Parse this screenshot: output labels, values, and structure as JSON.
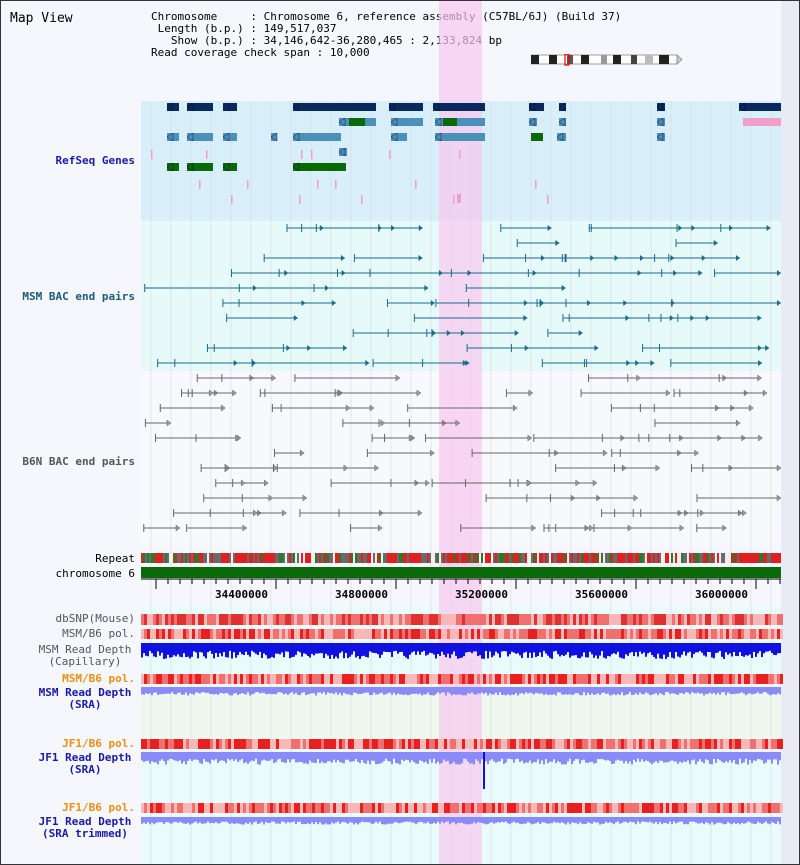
{
  "view": {
    "title": "Map View"
  },
  "info": {
    "chromosome_label": "Chromosome",
    "chromosome_value": "Chromosome 6, reference assembly (C57BL/6J) (Build 37)",
    "length_label": "Length (b.p.)",
    "length_value": "149,517,037",
    "show_label": "Show (b.p.)",
    "show_value": "34,146,642-36,280,465 : 2,133,824 bp",
    "span_label": "Read coverage check span",
    "span_value": "10,000"
  },
  "tracks": {
    "refseq": "RefSeq Genes",
    "msm_bac": "MSM BAC end pairs",
    "b6n_bac": "B6N BAC end pairs",
    "repeat": "Repeat",
    "chromosome": "chromosome 6",
    "dbsnp": "dbSNP(Mouse)",
    "msm_b6_pol": "MSM/B6 pol.",
    "msm_depth_cap_1": "MSM Read Depth",
    "msm_depth_cap_2": "(Capillary)",
    "msm_b6_pol_2": "MSM/B6 pol.",
    "msm_depth_sra_1": "MSM Read Depth",
    "msm_depth_sra_2": "(SRA)",
    "jf1_b6_pol": "JF1/B6 pol.",
    "jf1_depth_sra_1": "JF1 Read Depth",
    "jf1_depth_sra_2": "(SRA)",
    "jf1_b6_pol_2": "JF1/B6 pol.",
    "jf1_depth_trim_1": "JF1 Read Depth",
    "jf1_depth_trim_2": "(SRA trimmed)"
  },
  "axis": {
    "ticks": [
      "34400000",
      "34800000",
      "35200000",
      "35600000",
      "36000000"
    ]
  },
  "colors": {
    "refseq_bg": "#d8eef8",
    "bac_bg": "#e6fafa",
    "highlight": "#f8c8f0",
    "gene_dark": "#0a2a5e",
    "gene_mid": "#4a90b8",
    "gene_green": "#0a6a0a",
    "gene_pink": "#f0a0c8",
    "bac_msm": "#1a6a8a",
    "bac_b6n": "#666666",
    "chromosome_bar": "#0a6a0a",
    "label_blue": "#1a1aa8",
    "label_teal": "#1a5a7a",
    "label_orange": "#e89010",
    "depth_blue": "#1010e0",
    "depth_light": "#8a8af8"
  }
}
